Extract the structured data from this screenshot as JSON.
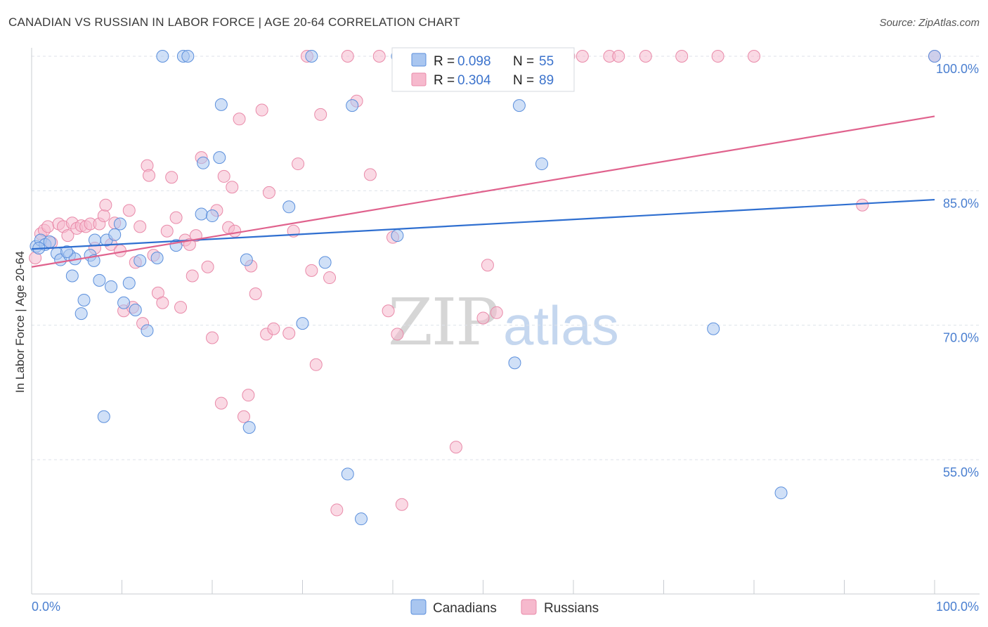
{
  "title": "CANADIAN VS RUSSIAN IN LABOR FORCE | AGE 20-64 CORRELATION CHART",
  "source": "Source: ZipAtlas.com",
  "watermark": {
    "part1": "ZIP",
    "part2": "atlas"
  },
  "colors": {
    "canadians_fill": "#a9c6f0",
    "canadians_stroke": "#5b8fdc",
    "canadians_line": "#2f6fd0",
    "russians_fill": "#f6b9cd",
    "russians_stroke": "#e98aa9",
    "russians_line": "#e0628d",
    "tick_label": "#4a7fd0",
    "grid": "#dde2ea"
  },
  "legend": {
    "rows": [
      {
        "r_label": "R = ",
        "r_value": "0.098",
        "n_label": "N = ",
        "n_value": "55"
      },
      {
        "r_label": "R = ",
        "r_value": "0.304",
        "n_label": "N = ",
        "n_value": "89"
      }
    ]
  },
  "bottom_legend": [
    "Canadians",
    "Russians"
  ],
  "chart_data": {
    "type": "scatter",
    "title": "CANADIAN VS RUSSIAN IN LABOR FORCE | AGE 20-64 CORRELATION CHART",
    "xlabel": "",
    "ylabel": "In Labor Force | Age 20-64",
    "xlim": [
      0,
      100
    ],
    "ylim": [
      40,
      101
    ],
    "x_tick_labels": [
      "0.0%",
      "100.0%"
    ],
    "y_ticks": [
      55,
      70,
      85,
      100
    ],
    "y_tick_labels": [
      "55.0%",
      "70.0%",
      "85.0%",
      "100.0%"
    ],
    "grid": true,
    "legend_position": "top-center",
    "series": [
      {
        "name": "Canadians",
        "r": 0.098,
        "n": 55,
        "trend": {
          "x": [
            0,
            100
          ],
          "y": [
            78.5,
            84.0
          ]
        },
        "points": [
          [
            0.5,
            78.8
          ],
          [
            1,
            79.5
          ],
          [
            1.5,
            79.0
          ],
          [
            2,
            79.3
          ],
          [
            2.8,
            78.0
          ],
          [
            3.2,
            77.3
          ],
          [
            4.2,
            77.8
          ],
          [
            4.5,
            75.5
          ],
          [
            4.8,
            77.4
          ],
          [
            5.5,
            71.3
          ],
          [
            5.8,
            72.8
          ],
          [
            6.5,
            77.8
          ],
          [
            7,
            79.5
          ],
          [
            7.5,
            75.0
          ],
          [
            8,
            59.8
          ],
          [
            8.3,
            79.5
          ],
          [
            8.8,
            74.3
          ],
          [
            9.2,
            80.1
          ],
          [
            9.8,
            81.3
          ],
          [
            10.2,
            72.5
          ],
          [
            10.8,
            74.7
          ],
          [
            11.5,
            71.7
          ],
          [
            12,
            77.2
          ],
          [
            12.8,
            69.4
          ],
          [
            13.9,
            77.5
          ],
          [
            14.5,
            100
          ],
          [
            16,
            78.9
          ],
          [
            16.8,
            100
          ],
          [
            17.3,
            100
          ],
          [
            18.8,
            82.4
          ],
          [
            19,
            88.1
          ],
          [
            20,
            82.2
          ],
          [
            20.8,
            88.7
          ],
          [
            21,
            94.6
          ],
          [
            23.8,
            77.3
          ],
          [
            24.1,
            58.6
          ],
          [
            28.5,
            83.2
          ],
          [
            30,
            70.2
          ],
          [
            31,
            100
          ],
          [
            32.5,
            77.0
          ],
          [
            35,
            53.4
          ],
          [
            35.5,
            94.5
          ],
          [
            36.5,
            48.4
          ],
          [
            40.5,
            100
          ],
          [
            40.5,
            80.0
          ],
          [
            50,
            100
          ],
          [
            53.5,
            65.8
          ],
          [
            54,
            94.5
          ],
          [
            56.5,
            88.0
          ],
          [
            75.5,
            69.6
          ],
          [
            83,
            51.3
          ],
          [
            100,
            100
          ],
          [
            0.8,
            78.6
          ],
          [
            3.9,
            78.2
          ],
          [
            6.9,
            77.2
          ]
        ]
      },
      {
        "name": "Russians",
        "r": 0.304,
        "n": 89,
        "trend": {
          "x": [
            0,
            100
          ],
          "y": [
            76.5,
            93.3
          ]
        },
        "points": [
          [
            0.4,
            77.5
          ],
          [
            1,
            80.2
          ],
          [
            1.4,
            80.6
          ],
          [
            1.8,
            81.0
          ],
          [
            2.2,
            79.2
          ],
          [
            3,
            81.3
          ],
          [
            3.5,
            81.0
          ],
          [
            4,
            80.0
          ],
          [
            4.5,
            81.4
          ],
          [
            5,
            80.8
          ],
          [
            5.5,
            81.1
          ],
          [
            6,
            81.0
          ],
          [
            6.5,
            81.3
          ],
          [
            7,
            78.6
          ],
          [
            7.5,
            81.3
          ],
          [
            8,
            82.2
          ],
          [
            8.2,
            83.4
          ],
          [
            8.8,
            79.0
          ],
          [
            9.2,
            81.4
          ],
          [
            9.8,
            78.3
          ],
          [
            10.2,
            71.6
          ],
          [
            10.8,
            82.8
          ],
          [
            11.2,
            72.0
          ],
          [
            11.5,
            77.0
          ],
          [
            12,
            81.0
          ],
          [
            12.3,
            70.2
          ],
          [
            12.8,
            87.8
          ],
          [
            13,
            86.7
          ],
          [
            13.5,
            77.8
          ],
          [
            14,
            73.6
          ],
          [
            14.5,
            72.5
          ],
          [
            15,
            80.5
          ],
          [
            15.5,
            86.5
          ],
          [
            16,
            82.0
          ],
          [
            16.5,
            72.0
          ],
          [
            17,
            79.5
          ],
          [
            17.5,
            79.0
          ],
          [
            17.8,
            75.5
          ],
          [
            18.2,
            80.0
          ],
          [
            18.8,
            88.7
          ],
          [
            19.5,
            76.5
          ],
          [
            20,
            68.6
          ],
          [
            20.5,
            82.8
          ],
          [
            21,
            61.3
          ],
          [
            21.3,
            86.6
          ],
          [
            21.8,
            80.9
          ],
          [
            22.2,
            85.4
          ],
          [
            22.5,
            80.5
          ],
          [
            23,
            93.0
          ],
          [
            23.5,
            59.8
          ],
          [
            24,
            62.2
          ],
          [
            24.3,
            76.6
          ],
          [
            24.8,
            73.5
          ],
          [
            25.5,
            94.0
          ],
          [
            26,
            69.0
          ],
          [
            26.3,
            84.8
          ],
          [
            26.8,
            69.6
          ],
          [
            28.5,
            69.1
          ],
          [
            29,
            80.5
          ],
          [
            29.5,
            88.0
          ],
          [
            30.5,
            100
          ],
          [
            31,
            76.1
          ],
          [
            31.5,
            65.6
          ],
          [
            32,
            93.5
          ],
          [
            33,
            75.3
          ],
          [
            33.8,
            49.4
          ],
          [
            35,
            100
          ],
          [
            36,
            95.0
          ],
          [
            37.5,
            86.8
          ],
          [
            38.5,
            100
          ],
          [
            39.5,
            71.6
          ],
          [
            40,
            79.8
          ],
          [
            40.5,
            69.0
          ],
          [
            41,
            50.0
          ],
          [
            47,
            56.4
          ],
          [
            48,
            100
          ],
          [
            50,
            70.8
          ],
          [
            50.5,
            76.7
          ],
          [
            51.5,
            71.4
          ],
          [
            59.5,
            100
          ],
          [
            61,
            100
          ],
          [
            64,
            100
          ],
          [
            65,
            100
          ],
          [
            68,
            100
          ],
          [
            72,
            100
          ],
          [
            76,
            100
          ],
          [
            80,
            100
          ],
          [
            92,
            83.4
          ],
          [
            100,
            100
          ]
        ]
      }
    ]
  }
}
